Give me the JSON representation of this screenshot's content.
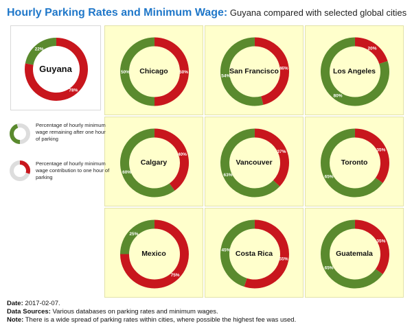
{
  "title": {
    "main": "Hourly Parking Rates and Minimum Wage:",
    "sub": " Guyana compared with selected global cities"
  },
  "colors": {
    "remaining": "#5a8a2e",
    "contribution": "#c8161d"
  },
  "legend": {
    "remaining": "Percentage of hourly minimum  wage remaining after one hour of parking",
    "contribution": "Percentage of hourly minimum  wage contribution to one hour of parking"
  },
  "chart_data": {
    "type": "pie",
    "series": [
      {
        "name": "Percentage of hourly minimum wage contribution to one hour of parking"
      },
      {
        "name": "Percentage of hourly minimum wage remaining after one hour of parking"
      }
    ],
    "cities": [
      {
        "name": "Guyana",
        "contribution": 78,
        "remaining": 22,
        "contribution_label": "78%",
        "remaining_label": "22%"
      },
      {
        "name": "Chicago",
        "contribution": 50,
        "remaining": 50,
        "contribution_label": "50%",
        "remaining_label": "50%"
      },
      {
        "name": "San Francisco",
        "contribution": 46,
        "remaining": 54,
        "contribution_label": "46%",
        "remaining_label": "54%"
      },
      {
        "name": "Los Angeles",
        "contribution": 20,
        "remaining": 80,
        "contribution_label": "20%",
        "remaining_label": "80%"
      },
      {
        "name": "Calgary",
        "contribution": 40,
        "remaining": 60,
        "contribution_label": "40%",
        "remaining_label": "60%"
      },
      {
        "name": "Vancouver",
        "contribution": 37,
        "remaining": 63,
        "contribution_label": "37%",
        "remaining_label": "63%"
      },
      {
        "name": "Toronto",
        "contribution": 35,
        "remaining": 65,
        "contribution_label": "35%",
        "remaining_label": "65%"
      },
      {
        "name": "Mexico",
        "contribution": 75,
        "remaining": 25,
        "contribution_label": "75%",
        "remaining_label": "25%"
      },
      {
        "name": "Costa Rica",
        "contribution": 55,
        "remaining": 45,
        "contribution_label": "55%",
        "remaining_label": "45%"
      },
      {
        "name": "Guatemala",
        "contribution": 35,
        "remaining": 65,
        "contribution_label": "35%",
        "remaining_label": "65%"
      }
    ]
  },
  "footer": {
    "date_label": "Date:",
    "date_value": " 2017-02-07.",
    "sources_label": "Data Sources:",
    "sources_value": " Various databases on parking rates and minimum wages.",
    "note_label": "Note:",
    "note_value": " There is a wide spread of parking rates within cities, where possible the highest fee was used."
  }
}
